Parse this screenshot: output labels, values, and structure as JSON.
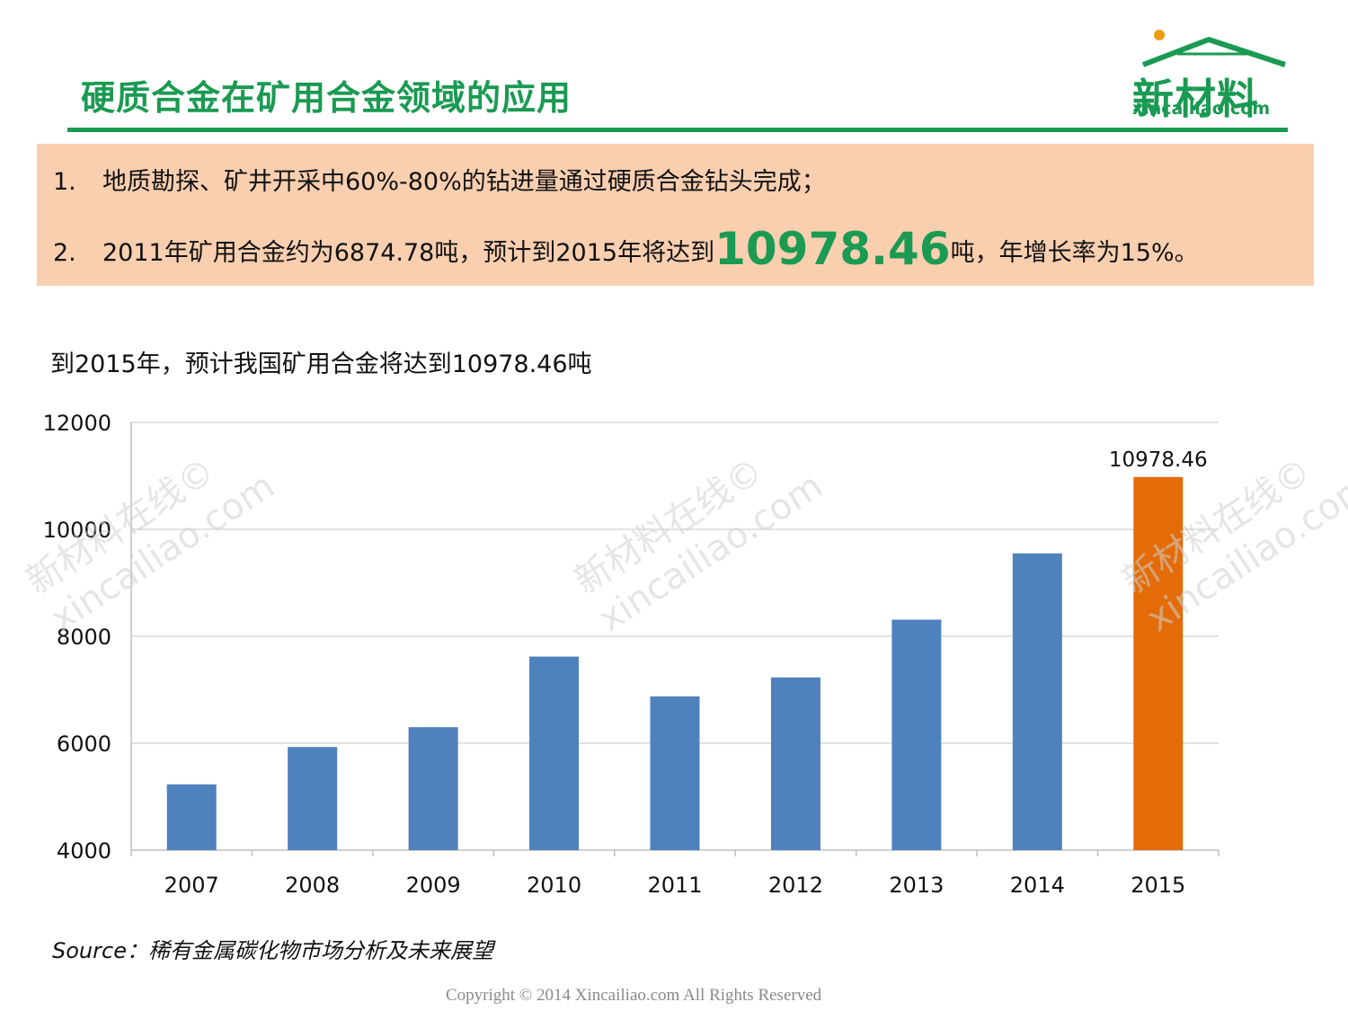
{
  "header": {
    "title": "硬质合金在矿用合金领域的应用",
    "logo_cn": "新材料",
    "logo_en": "xincailiao.com"
  },
  "callout": {
    "line1_num": "1.",
    "line1_text": "地质勘探、矿井开采中60%-80%的钻进量通过硬质合金钻头完成；",
    "line2_num": "2.",
    "line2_text_a": "2011年矿用合金约为6874.78吨，预计到2015年将达到",
    "line2_highlight": "10978.46",
    "line2_text_b": "吨，年增长率为15%。"
  },
  "chart_caption": "到2015年，预计我国矿用合金将达到10978.46吨",
  "watermark": {
    "line1": "新材料在线©",
    "line2": "xincailiao.com"
  },
  "source": "Source：稀有金属碳化物市场分析及未来展望",
  "copyright": "Copyright © 2014   Xincailiao.com   All Rights Reserved",
  "colors": {
    "brand_green": "#1a9a52",
    "bar_blue": "#4f81bd",
    "bar_highlight": "#e36c09",
    "callout_bg": "#f9cfb0"
  },
  "chart_data": {
    "type": "bar",
    "categories": [
      "2007",
      "2008",
      "2009",
      "2010",
      "2011",
      "2012",
      "2013",
      "2014",
      "2015"
    ],
    "values": [
      5230,
      5930,
      6300,
      7620,
      6874.78,
      7230,
      8310,
      9550,
      10978.46
    ],
    "highlight_index": 8,
    "data_labels": [
      {
        "index": 8,
        "text": "10978.46"
      }
    ],
    "ylim": [
      4000,
      12000
    ],
    "yticks": [
      4000,
      6000,
      8000,
      10000,
      12000
    ],
    "grid": true,
    "legend": "none"
  }
}
